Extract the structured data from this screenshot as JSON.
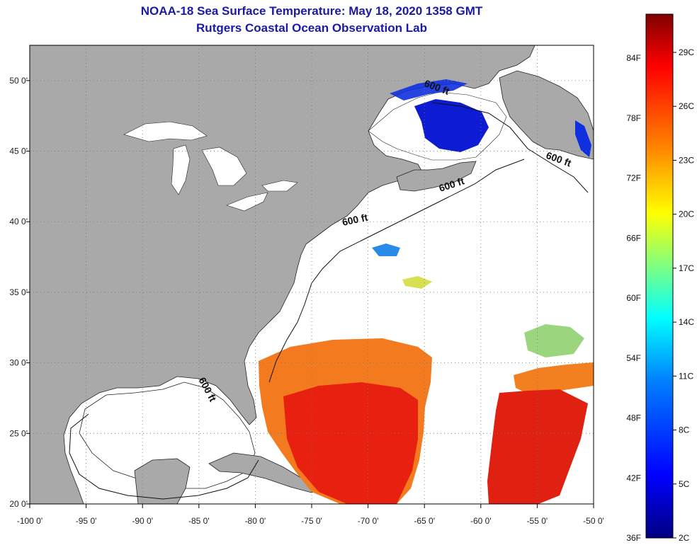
{
  "title": {
    "line1": "NOAA-18 Sea Surface Temperature:  May 18, 2020 1358 GMT",
    "line2": "Rutgers Coastal Ocean Observation Lab"
  },
  "axes": {
    "x_ticks": [
      "-100 0'",
      "-95 0'",
      "-90 0'",
      "-85 0'",
      "-80 0'",
      "-75 0'",
      "-70 0'",
      "-65 0'",
      "-60 0'",
      "-55 0'",
      "-50 0'"
    ],
    "x_values": [
      -100,
      -95,
      -90,
      -85,
      -80,
      -75,
      -70,
      -65,
      -60,
      -55,
      -50
    ],
    "y_ticks": [
      "50 0'",
      "45 0'",
      "40 0'",
      "35 0'",
      "30 0'",
      "25 0'",
      "20 0'"
    ],
    "y_values": [
      50,
      45,
      40,
      35,
      30,
      25,
      20
    ],
    "lon_range": [
      -100,
      -50
    ],
    "lat_range": [
      20,
      52.5
    ]
  },
  "contours": [
    {
      "text": "600 ft",
      "lon": -64,
      "lat": 49.3,
      "rotate": 20
    },
    {
      "text": "600 ft",
      "lon": -53.2,
      "lat": 44.2,
      "rotate": 20
    },
    {
      "text": "600 ft",
      "lon": -62.5,
      "lat": 42.4,
      "rotate": -18
    },
    {
      "text": "600 ft",
      "lon": -71.1,
      "lat": 39.9,
      "rotate": -12
    },
    {
      "text": "600 ft",
      "lon": -84.5,
      "lat": 28.0,
      "rotate": 62
    }
  ],
  "colorbar": {
    "fahrenheit": [
      "84F",
      "78F",
      "72F",
      "66F",
      "60F",
      "54F",
      "48F",
      "42F",
      "36F"
    ],
    "celsius": [
      "29C",
      "26C",
      "23C",
      "20C",
      "17C",
      "14C",
      "11C",
      "8C",
      "5C",
      "2C"
    ],
    "colors": [
      "#000080",
      "#0000ff",
      "#0080ff",
      "#00ffff",
      "#80ff80",
      "#ffff00",
      "#ff8000",
      "#ff0000",
      "#800000"
    ]
  },
  "colors": {
    "land": "#a9a9a9",
    "ocean": "#ffffff",
    "title": "#1a1aa6"
  }
}
